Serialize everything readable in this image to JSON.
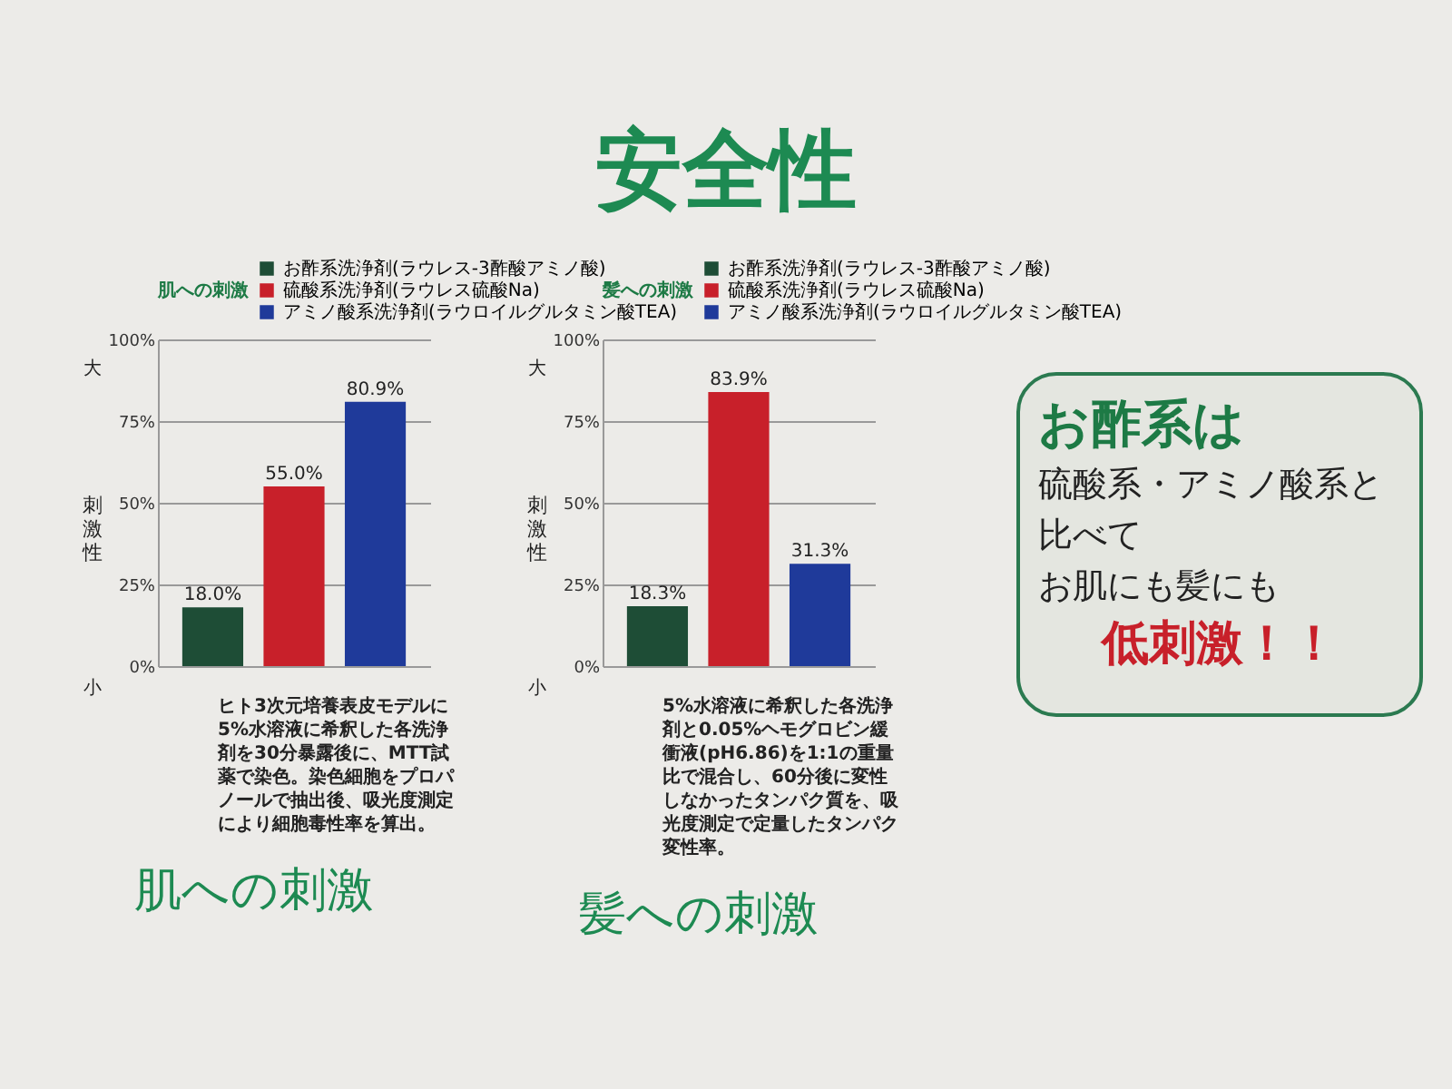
{
  "chart_data": [
    {
      "type": "other",
      "title": "安全性"
    },
    {
      "type": "bar",
      "title": "肌への刺激",
      "legend_title": "肌への刺激",
      "ylabel": "刺激性",
      "annotations": [
        "大",
        "小",
        "ヒト3次元培養表皮モデルに5%水溶液に希釈した各洗浄剤を30分暴露後に、MTT試薬で染色。染色細胞をプロパノールで抽出後、吸光度測定により細胞毒性率を算出。"
      ],
      "categories": [
        null,
        null,
        null
      ],
      "ylim": [
        0,
        100
      ],
      "yticks": [
        {
          "value": 0,
          "label": "0%"
        },
        {
          "value": 25,
          "label": "25%"
        },
        {
          "value": 50,
          "label": "50%"
        },
        {
          "value": 75,
          "label": "75%"
        },
        {
          "value": 100,
          "label": "100%"
        }
      ],
      "grid": "y",
      "legend": "top",
      "series": [
        {
          "name": "お酢系洗浄剤(ラウレス-3酢酸アミノ酸)",
          "color": "#1e4d36",
          "values": [
            18.0,
            null,
            null
          ],
          "value_labels": [
            "18.0%",
            null,
            null
          ]
        },
        {
          "name": "硫酸系洗浄剤(ラウレス硫酸Na)",
          "color": "#c8202a",
          "values": [
            null,
            55.0,
            null
          ],
          "value_labels": [
            null,
            "55.0%",
            null
          ]
        },
        {
          "name": "アミノ酸系洗浄剤(ラウロイルグルタミン酸TEA)",
          "color": "#1f3a9a",
          "values": [
            null,
            null,
            80.9
          ],
          "value_labels": [
            null,
            null,
            "80.9%"
          ]
        }
      ]
    },
    {
      "type": "bar",
      "title": "髪への刺激",
      "legend_title": "髪への刺激",
      "ylabel": "刺激性",
      "annotations": [
        "大",
        "小",
        "5%水溶液に希釈した各洗浄剤と0.05%ヘモグロビン緩衝液(pH6.86)を1:1の重量比で混合し、60分後に変性しなかったタンパク質を、吸光度測定で定量したタンパク変性率。"
      ],
      "categories": [
        null,
        null,
        null
      ],
      "ylim": [
        0,
        100
      ],
      "yticks": [
        {
          "value": 0,
          "label": "0%"
        },
        {
          "value": 25,
          "label": "25%"
        },
        {
          "value": 50,
          "label": "50%"
        },
        {
          "value": 75,
          "label": "75%"
        },
        {
          "value": 100,
          "label": "100%"
        }
      ],
      "grid": "y",
      "legend": "top",
      "series": [
        {
          "name": "お酢系洗浄剤(ラウレス-3酢酸アミノ酸)",
          "color": "#1e4d36",
          "values": [
            18.3,
            null,
            null
          ],
          "value_labels": [
            "18.3%",
            null,
            null
          ]
        },
        {
          "name": "硫酸系洗浄剤(ラウレス硫酸Na)",
          "color": "#c8202a",
          "values": [
            null,
            83.9,
            null
          ],
          "value_labels": [
            null,
            "83.9%",
            null
          ]
        },
        {
          "name": "アミノ酸系洗浄剤(ラウロイルグルタミン酸TEA)",
          "color": "#1f3a9a",
          "values": [
            null,
            null,
            31.3
          ],
          "value_labels": [
            null,
            null,
            "31.3%"
          ]
        }
      ]
    },
    {
      "type": "other",
      "annotations": [
        "お酢系は",
        "硫酸系・アミノ酸系と",
        "比べて",
        "お肌にも髪にも",
        "低刺激！！"
      ]
    }
  ]
}
